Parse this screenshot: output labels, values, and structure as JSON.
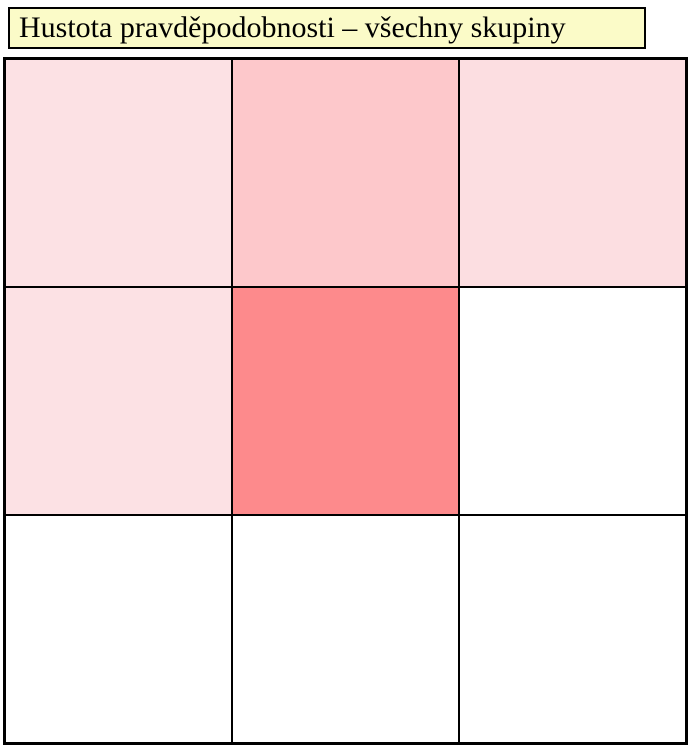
{
  "title": {
    "label": "Hustota pravděpodobnosti – všechny skupiny",
    "background": "#fbfbc8",
    "border_color": "#000000",
    "text_color": "#000000"
  },
  "chart_data": {
    "type": "heatmap",
    "title": "Hustota pravděpodobnosti – všechny skupiny",
    "rows": 3,
    "cols": 3,
    "values": [
      [
        0.12,
        0.21,
        0.13
      ],
      [
        0.12,
        0.46,
        0.0
      ],
      [
        0.0,
        0.0,
        0.0
      ]
    ],
    "cell_colors": [
      [
        "#fce1e4",
        "#fdc8cb",
        "#fcdee1"
      ],
      [
        "#fce1e4",
        "#fd8a8c",
        "#ffffff"
      ],
      [
        "#ffffff",
        "#ffffff",
        "#ffffff"
      ]
    ],
    "grid_line_color": "#000000",
    "outer_border_color": "#000000",
    "legend": false,
    "axis_labels": false
  }
}
